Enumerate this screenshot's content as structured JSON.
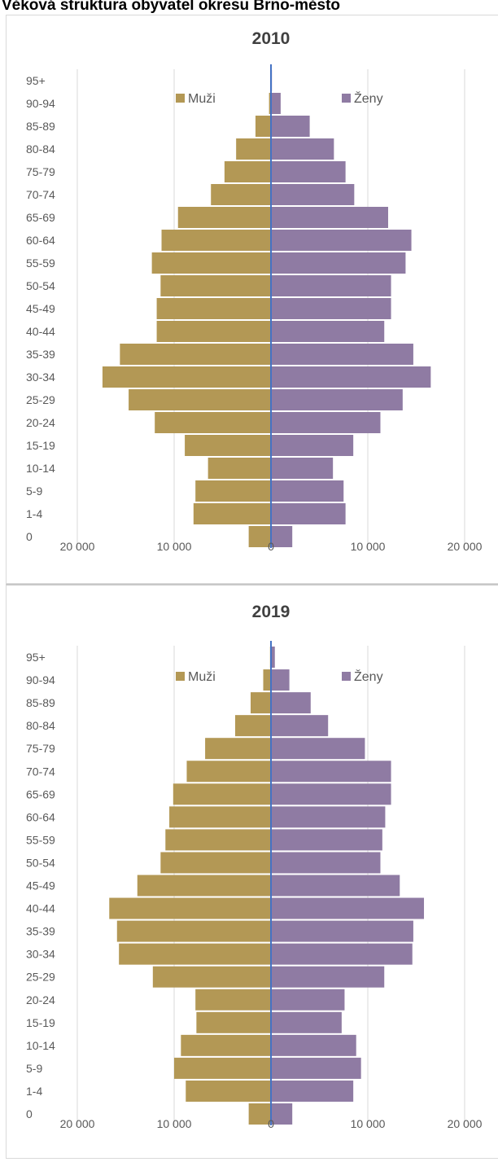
{
  "page": {
    "heading": "Věková struktura obyvatel okresu Brno-město"
  },
  "colors": {
    "male": "#b39855",
    "female": "#8f7ba3",
    "center_line": "#4472c4",
    "grid": "#d9d9d9"
  },
  "chart_data": [
    {
      "type": "bar",
      "orientation": "horizontal",
      "title": "2010",
      "categories": [
        "95+",
        "90-94",
        "85-89",
        "80-84",
        "75-79",
        "70-74",
        "65-69",
        "60-64",
        "55-59",
        "50-54",
        "45-49",
        "40-44",
        "35-39",
        "30-34",
        "25-29",
        "20-24",
        "15-19",
        "10-14",
        "5-9",
        "1-4",
        "0"
      ],
      "series": [
        {
          "name": "Muži",
          "values": [
            0,
            -200,
            -1600,
            -3600,
            -4800,
            -6200,
            -9600,
            -11300,
            -12300,
            -11400,
            -11800,
            -11800,
            -15600,
            -17400,
            -14700,
            -12000,
            -8900,
            -6500,
            -7800,
            -8000,
            -2300
          ]
        },
        {
          "name": "Ženy",
          "values": [
            100,
            1000,
            4000,
            6500,
            7700,
            8600,
            12100,
            14500,
            13900,
            12400,
            12400,
            11700,
            14700,
            16500,
            13600,
            11300,
            8500,
            6400,
            7500,
            7700,
            2200
          ]
        }
      ],
      "xlim": [
        -20000,
        20000
      ],
      "xticks": [
        "20 000",
        "10 000",
        "0",
        "10 000",
        "20 000"
      ],
      "grid": true,
      "legend": "top"
    },
    {
      "type": "bar",
      "orientation": "horizontal",
      "title": "2019",
      "categories": [
        "95+",
        "90-94",
        "85-89",
        "80-84",
        "75-79",
        "70-74",
        "65-69",
        "60-64",
        "55-59",
        "50-54",
        "45-49",
        "40-44",
        "35-39",
        "30-34",
        "25-29",
        "20-24",
        "15-19",
        "10-14",
        "5-9",
        "1-4",
        "0"
      ],
      "series": [
        {
          "name": "Muži",
          "values": [
            -100,
            -800,
            -2100,
            -3700,
            -6800,
            -8700,
            -10100,
            -10500,
            -10900,
            -11400,
            -13800,
            -16700,
            -15900,
            -15700,
            -12200,
            -7800,
            -7700,
            -9300,
            -10000,
            -8800,
            -2300
          ]
        },
        {
          "name": "Ženy",
          "values": [
            400,
            1900,
            4100,
            5900,
            9700,
            12400,
            12400,
            11800,
            11500,
            11300,
            13300,
            15800,
            14700,
            14600,
            11700,
            7600,
            7300,
            8800,
            9300,
            8500,
            2200
          ]
        }
      ],
      "xlim": [
        -20000,
        20000
      ],
      "xticks": [
        "20 000",
        "10 000",
        "0",
        "10 000",
        "20 000"
      ],
      "grid": true,
      "legend": "top"
    }
  ]
}
